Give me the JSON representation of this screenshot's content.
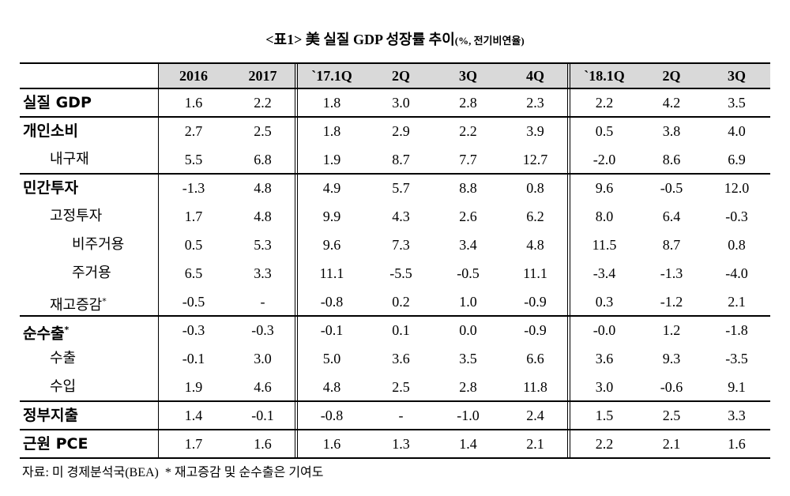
{
  "title": "<표1> 美 실질 GDP 성장률 추이",
  "unit": "(%, 전기비연율)",
  "table": {
    "header": [
      "2016",
      "2017",
      "`17.1Q",
      "2Q",
      "3Q",
      "4Q",
      "`18.1Q",
      "2Q",
      "3Q"
    ],
    "sections": [
      {
        "label": "실질 GDP",
        "values": [
          "1.6",
          "2.2",
          "1.8",
          "3.0",
          "2.8",
          "2.3",
          "2.2",
          "4.2",
          "3.5"
        ],
        "children": []
      },
      {
        "label": "개인소비",
        "values": [
          "2.7",
          "2.5",
          "1.8",
          "2.9",
          "2.2",
          "3.9",
          "0.5",
          "3.8",
          "4.0"
        ],
        "children": [
          {
            "label": "내구재",
            "values": [
              "5.5",
              "6.8",
              "1.9",
              "8.7",
              "7.7",
              "12.7",
              "-2.0",
              "8.6",
              "6.9"
            ],
            "children": []
          }
        ]
      },
      {
        "label": "민간투자",
        "values": [
          "-1.3",
          "4.8",
          "4.9",
          "5.7",
          "8.8",
          "0.8",
          "9.6",
          "-0.5",
          "12.0"
        ],
        "children": [
          {
            "label": "고정투자",
            "values": [
              "1.7",
              "4.8",
              "9.9",
              "4.3",
              "2.6",
              "6.2",
              "8.0",
              "6.4",
              "-0.3"
            ],
            "children": [
              {
                "label": "비주거용",
                "values": [
                  "0.5",
                  "5.3",
                  "9.6",
                  "7.3",
                  "3.4",
                  "4.8",
                  "11.5",
                  "8.7",
                  "0.8"
                ],
                "children": []
              },
              {
                "label": "주거용",
                "values": [
                  "6.5",
                  "3.3",
                  "11.1",
                  "-5.5",
                  "-0.5",
                  "11.1",
                  "-3.4",
                  "-1.3",
                  "-4.0"
                ],
                "children": []
              }
            ]
          },
          {
            "label": "재고증감",
            "note": "*",
            "values": [
              "-0.5",
              "-",
              "-0.8",
              "0.2",
              "1.0",
              "-0.9",
              "0.3",
              "-1.2",
              "2.1"
            ],
            "children": []
          }
        ]
      },
      {
        "label": "순수출",
        "note": "*",
        "values": [
          "-0.3",
          "-0.3",
          "-0.1",
          "0.1",
          "0.0",
          "-0.9",
          "-0.0",
          "1.2",
          "-1.8"
        ],
        "children": [
          {
            "label": "수출",
            "values": [
              "-0.1",
              "3.0",
              "5.0",
              "3.6",
              "3.5",
              "6.6",
              "3.6",
              "9.3",
              "-3.5"
            ],
            "children": []
          },
          {
            "label": "수입",
            "values": [
              "1.9",
              "4.6",
              "4.8",
              "2.5",
              "2.8",
              "11.8",
              "3.0",
              "-0.6",
              "9.1"
            ],
            "children": []
          }
        ]
      },
      {
        "label": "정부지출",
        "values": [
          "1.4",
          "-0.1",
          "-0.8",
          "-",
          "-1.0",
          "2.4",
          "1.5",
          "2.5",
          "3.3"
        ],
        "children": []
      },
      {
        "label": "근원 PCE",
        "values": [
          "1.7",
          "1.6",
          "1.6",
          "1.3",
          "1.4",
          "2.1",
          "2.2",
          "2.1",
          "1.6"
        ],
        "children": []
      }
    ]
  },
  "footnote": "자료: 미 경제분석국(BEA)  * 재고증감 및 순수출은 기여도"
}
